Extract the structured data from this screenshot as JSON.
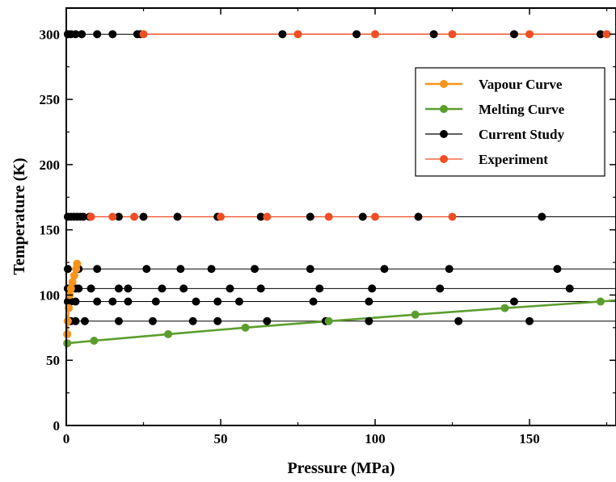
{
  "chart_data": {
    "type": "scatter",
    "xlabel": "Pressure (MPa)",
    "ylabel": "Temperature (K)",
    "xlim": [
      0,
      178
    ],
    "ylim": [
      0,
      320
    ],
    "xticks": [
      0,
      50,
      100,
      150
    ],
    "yticks": [
      0,
      50,
      100,
      150,
      200,
      250,
      300
    ],
    "x_tick_labels": [
      "0",
      "50",
      "100",
      "150"
    ],
    "y_tick_labels": [
      "0",
      "50",
      "100",
      "150",
      "200",
      "250",
      "300"
    ],
    "grid": false,
    "legend_position": "top-right",
    "series": [
      {
        "name": "Vapour Curve",
        "color": "#f7941d",
        "style": "line-markers",
        "points": [
          [
            0.3,
            70
          ],
          [
            0.5,
            80
          ],
          [
            0.8,
            90
          ],
          [
            1.1,
            100
          ],
          [
            1.5,
            105
          ],
          [
            2,
            110
          ],
          [
            2.6,
            115
          ],
          [
            3.2,
            120
          ],
          [
            3.5,
            124
          ]
        ]
      },
      {
        "name": "Melting Curve",
        "color": "#5c9e2e",
        "style": "line-markers",
        "points": [
          [
            0.3,
            63
          ],
          [
            9,
            65
          ],
          [
            33,
            70
          ],
          [
            58,
            75
          ],
          [
            85,
            80
          ],
          [
            113,
            85
          ],
          [
            142,
            90
          ],
          [
            173,
            95
          ],
          [
            178,
            96
          ]
        ]
      },
      {
        "name": "Current Study",
        "color": "#000000",
        "style": "isotherms",
        "isotherms": [
          {
            "T": 300,
            "p": [
              0.5,
              1.5,
              3,
              5,
              10,
              15,
              23,
              24,
              70,
              94,
              119,
              145,
              173
            ]
          },
          {
            "T": 160,
            "p": [
              0.5,
              1.5,
              2.5,
              3.5,
              4.5,
              5.5,
              7.5,
              17,
              25,
              36,
              49,
              63,
              79,
              96,
              114,
              154
            ]
          },
          {
            "T": 120,
            "p": [
              0.5,
              4,
              10,
              26,
              37,
              47,
              61,
              79,
              103,
              124,
              159
            ]
          },
          {
            "T": 105,
            "p": [
              0.5,
              1.5,
              3,
              4,
              8,
              17,
              20,
              31,
              38,
              53,
              63,
              82,
              99,
              121,
              163
            ]
          },
          {
            "T": 95,
            "p": [
              0.5,
              1.5,
              3,
              10,
              15,
              20,
              29,
              42,
              49,
              56,
              80,
              98,
              145
            ]
          },
          {
            "T": 80,
            "p": [
              0.5,
              1.5,
              3,
              6,
              17,
              28,
              41,
              49,
              65,
              84,
              98,
              127,
              150
            ]
          }
        ]
      },
      {
        "name": "Experiment",
        "color": "#f04e23",
        "style": "isotherms",
        "isotherms": [
          {
            "T": 300,
            "p": [
              25,
              75,
              100,
              125,
              150,
              175
            ]
          },
          {
            "T": 160,
            "p": [
              8,
              15,
              22,
              50,
              65,
              85,
              100,
              125
            ]
          }
        ]
      }
    ]
  }
}
